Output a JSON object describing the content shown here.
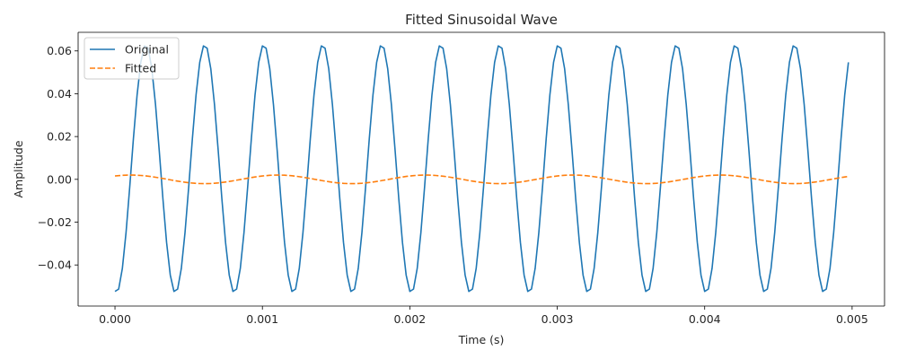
{
  "chart_data": {
    "type": "line",
    "title": "Fitted Sinusoidal Wave",
    "xlabel": "Time (s)",
    "ylabel": "Amplitude",
    "xlim": [
      -0.00025,
      0.00522
    ],
    "ylim": [
      -0.0592,
      0.0687
    ],
    "x_ticks": [
      0.0,
      0.001,
      0.002,
      0.003,
      0.004,
      0.005
    ],
    "x_tick_labels": [
      "0.000",
      "0.001",
      "0.002",
      "0.003",
      "0.004",
      "0.005"
    ],
    "y_ticks": [
      -0.04,
      -0.02,
      0.0,
      0.02,
      0.04,
      0.06
    ],
    "y_tick_labels": [
      "−0.04",
      "−0.02",
      "0.00",
      "0.02",
      "0.04",
      "0.06"
    ],
    "grid": false,
    "legend_position": "upper-left",
    "series": [
      {
        "name": "Original",
        "color": "#1f77b4",
        "style": "solid",
        "model": {
          "offset": 0.005,
          "amplitude": 0.058,
          "frequency_hz": 2500,
          "phase_rad": -1.72
        },
        "sample_count": 200,
        "x_start": 0.0,
        "x_end": 0.004975
      },
      {
        "name": "Fitted",
        "color": "#ff7f0e",
        "style": "dashed",
        "model": {
          "offset": 0.0,
          "amplitude": 0.002,
          "frequency_hz": 1000,
          "phase_rad": 0.9
        },
        "sample_count": 200,
        "x_start": 0.0,
        "x_end": 0.004975
      }
    ]
  }
}
